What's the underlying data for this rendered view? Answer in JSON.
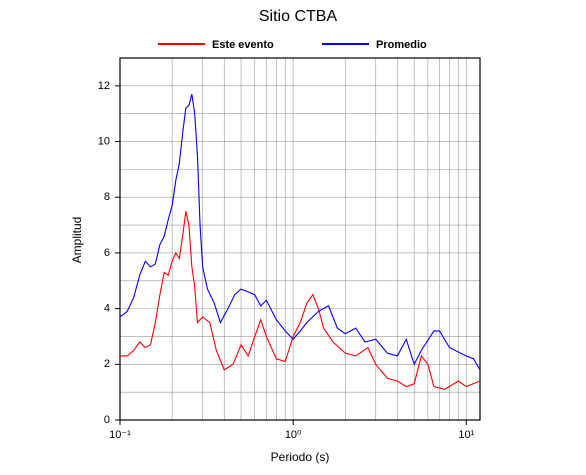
{
  "chart_data": {
    "type": "line",
    "title": "Sitio CTBA",
    "xlabel": "Periodo (s)",
    "ylabel": "Amplitud",
    "xscale": "log",
    "grid": true,
    "legend": "top",
    "xlim": [
      0.1,
      12
    ],
    "ylim": [
      0,
      13
    ],
    "xticks": [
      {
        "value": 0.1,
        "label": "10⁻¹"
      },
      {
        "value": 1,
        "label": "10⁰"
      },
      {
        "value": 10,
        "label": "10¹"
      }
    ],
    "xminorticks": [
      0.2,
      0.3,
      0.4,
      0.5,
      0.6,
      0.7,
      0.8,
      0.9,
      2,
      3,
      4,
      5,
      6,
      7,
      8,
      9
    ],
    "yticks": [
      0,
      2,
      4,
      6,
      8,
      10,
      12
    ],
    "yminorticks": [
      1,
      3,
      5,
      7,
      9,
      11
    ],
    "series": [
      {
        "name": "Este evento",
        "color": "#ff0000",
        "x": [
          0.1,
          0.11,
          0.12,
          0.13,
          0.14,
          0.15,
          0.16,
          0.17,
          0.18,
          0.19,
          0.2,
          0.21,
          0.22,
          0.23,
          0.24,
          0.25,
          0.26,
          0.27,
          0.28,
          0.3,
          0.33,
          0.36,
          0.4,
          0.45,
          0.5,
          0.55,
          0.6,
          0.65,
          0.7,
          0.8,
          0.9,
          1.0,
          1.1,
          1.2,
          1.3,
          1.4,
          1.5,
          1.7,
          2.0,
          2.3,
          2.7,
          3.0,
          3.5,
          4.0,
          4.5,
          5.0,
          5.5,
          6.0,
          6.5,
          7.5,
          9.0,
          10,
          12
        ],
        "values": [
          2.3,
          2.3,
          2.5,
          2.8,
          2.6,
          2.7,
          3.5,
          4.5,
          5.3,
          5.2,
          5.7,
          6.0,
          5.8,
          6.6,
          7.5,
          7.0,
          5.5,
          4.8,
          3.5,
          3.7,
          3.5,
          2.5,
          1.8,
          2.0,
          2.7,
          2.3,
          3.0,
          3.6,
          3.0,
          2.2,
          2.1,
          3.0,
          3.5,
          4.2,
          4.5,
          4.0,
          3.3,
          2.8,
          2.4,
          2.3,
          2.6,
          2.0,
          1.5,
          1.4,
          1.2,
          1.3,
          2.3,
          2.0,
          1.2,
          1.1,
          1.4,
          1.2,
          1.4
        ]
      },
      {
        "name": "Promedio",
        "color": "#0000ff",
        "x": [
          0.1,
          0.11,
          0.12,
          0.13,
          0.14,
          0.15,
          0.16,
          0.17,
          0.18,
          0.19,
          0.2,
          0.21,
          0.22,
          0.23,
          0.24,
          0.25,
          0.26,
          0.27,
          0.28,
          0.29,
          0.3,
          0.32,
          0.35,
          0.38,
          0.42,
          0.46,
          0.5,
          0.55,
          0.6,
          0.65,
          0.7,
          0.8,
          0.9,
          1.0,
          1.1,
          1.2,
          1.4,
          1.6,
          1.8,
          2.0,
          2.3,
          2.6,
          3.0,
          3.5,
          4.0,
          4.5,
          5.0,
          5.5,
          6.5,
          7.0,
          8.0,
          10,
          11,
          12
        ],
        "values": [
          3.7,
          3.9,
          4.4,
          5.2,
          5.7,
          5.5,
          5.6,
          6.3,
          6.6,
          7.2,
          7.7,
          8.6,
          9.2,
          10.3,
          11.2,
          11.3,
          11.7,
          11.0,
          9.5,
          7.0,
          5.5,
          4.7,
          4.2,
          3.5,
          4.0,
          4.5,
          4.7,
          4.6,
          4.5,
          4.1,
          4.3,
          3.6,
          3.2,
          2.9,
          3.2,
          3.5,
          3.9,
          4.1,
          3.3,
          3.1,
          3.3,
          2.8,
          2.9,
          2.4,
          2.3,
          2.9,
          2.0,
          2.5,
          3.2,
          3.2,
          2.6,
          2.3,
          2.2,
          1.8
        ]
      }
    ]
  }
}
